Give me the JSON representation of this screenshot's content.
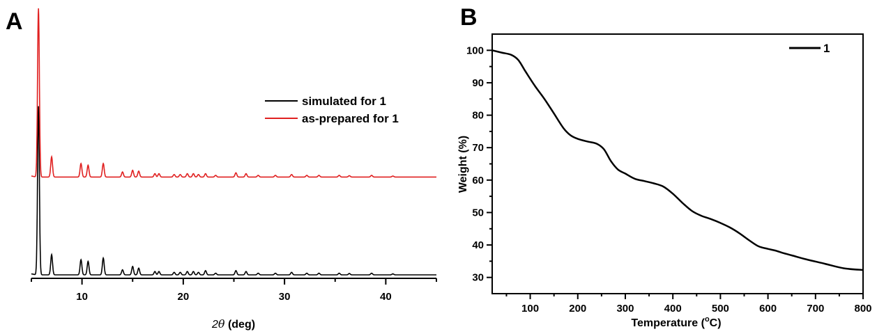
{
  "chart_data": [
    {
      "panel": "A",
      "type": "line",
      "xlabel": "2θ (deg)",
      "ylabel": "",
      "xlim": [
        5,
        45
      ],
      "xticks": [
        10,
        20,
        30,
        40
      ],
      "y_axis_shown": false,
      "legend": {
        "placement": "top-right",
        "entries": [
          "simulated for 1",
          "as-prepared for 1"
        ]
      },
      "colors": {
        "simulated for 1": "#000000",
        "as-prepared for 1": "#e02020"
      },
      "peaks_2theta": [
        5.7,
        7.0,
        9.9,
        10.6,
        12.1,
        14.0,
        15.0,
        15.6,
        17.2,
        17.6,
        19.1,
        19.7,
        20.4,
        21.0,
        21.5,
        22.2,
        23.2,
        25.2,
        26.2,
        27.4,
        29.1,
        30.7,
        32.2,
        33.4,
        35.4,
        36.4,
        38.6,
        40.7
      ],
      "series": [
        {
          "name": "simulated for 1",
          "baseline": 0,
          "intensity": [
            100,
            12,
            9,
            8,
            10,
            3,
            5,
            4,
            2,
            2,
            1.5,
            1.5,
            2,
            2,
            1.5,
            2.5,
            1,
            2.5,
            2,
            1,
            1,
            1.5,
            1,
            1,
            1,
            0.8,
            1,
            0.6
          ]
        },
        {
          "name": "as-prepared for 1",
          "baseline": 58,
          "intensity": [
            100,
            12,
            8,
            7,
            8,
            3,
            4,
            3.5,
            2,
            2,
            1.5,
            1.5,
            2,
            2,
            1.5,
            2,
            1,
            2.5,
            2,
            1,
            1,
            1.5,
            1,
            1,
            1,
            0.8,
            1,
            0.6
          ]
        }
      ]
    },
    {
      "panel": "B",
      "type": "line",
      "xlabel": "Temperature (",
      "xlabel_sup": "o",
      "xlabel_end": "C)",
      "ylabel": "Weight (%)",
      "xlim": [
        20,
        800
      ],
      "ylim": [
        25,
        105
      ],
      "xticks": [
        100,
        200,
        300,
        400,
        500,
        600,
        700,
        800
      ],
      "yticks": [
        30,
        40,
        50,
        60,
        70,
        80,
        90,
        100
      ],
      "legend": {
        "placement": "top-right",
        "entries": [
          "1"
        ]
      },
      "series": [
        {
          "name": "1",
          "color": "#000000",
          "x": [
            20,
            40,
            60,
            75,
            90,
            110,
            130,
            150,
            170,
            185,
            200,
            220,
            240,
            255,
            270,
            285,
            300,
            320,
            340,
            360,
            380,
            400,
            420,
            440,
            460,
            480,
            500,
            520,
            540,
            560,
            580,
            600,
            615,
            630,
            650,
            680,
            720,
            760,
            800
          ],
          "y": [
            100,
            99.3,
            98.6,
            97.0,
            93.5,
            89.0,
            85.0,
            80.5,
            76.0,
            73.8,
            72.7,
            71.9,
            71.2,
            69.5,
            65.8,
            63.2,
            62.0,
            60.4,
            59.7,
            59.0,
            58.0,
            55.8,
            53.0,
            50.5,
            49.0,
            48.0,
            46.8,
            45.4,
            43.6,
            41.5,
            39.6,
            38.8,
            38.3,
            37.6,
            36.8,
            35.6,
            34.2,
            32.8,
            32.3
          ]
        }
      ]
    }
  ]
}
